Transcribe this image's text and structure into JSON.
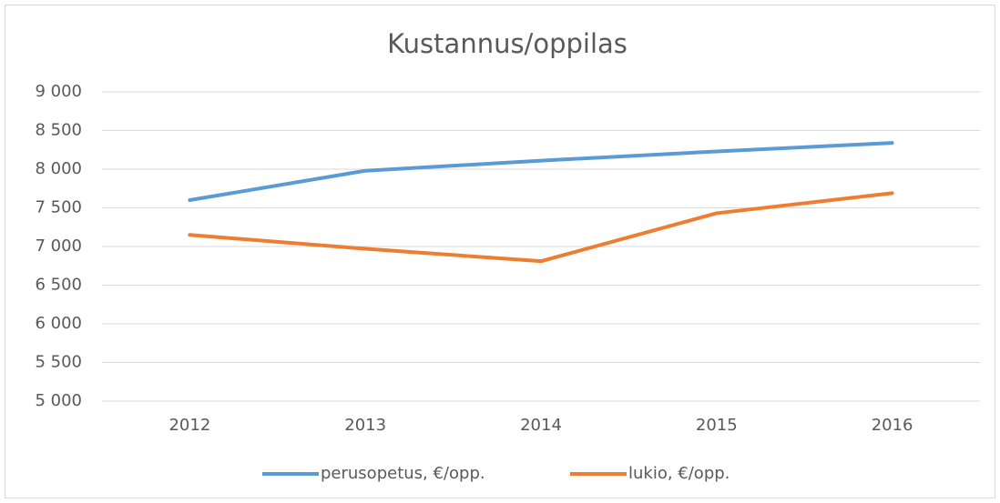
{
  "chart_data": {
    "type": "line",
    "title": "Kustannus/oppilas",
    "categories": [
      "2012",
      "2013",
      "2014",
      "2015",
      "2016"
    ],
    "series": [
      {
        "name": "perusopetus, €/opp.",
        "color": "#5b9bd5",
        "values": [
          7600,
          7980,
          8110,
          8230,
          8340
        ]
      },
      {
        "name": "lukio, €/opp.",
        "color": "#ed7d31",
        "values": [
          7150,
          6970,
          6810,
          7430,
          7690
        ]
      }
    ],
    "ylim": [
      5000,
      9000
    ],
    "yticks": [
      {
        "value": 5000,
        "label": "5 000"
      },
      {
        "value": 5500,
        "label": "5 500"
      },
      {
        "value": 6000,
        "label": "6 000"
      },
      {
        "value": 6500,
        "label": "6 500"
      },
      {
        "value": 7000,
        "label": "7 000"
      },
      {
        "value": 7500,
        "label": "7 500"
      },
      {
        "value": 8000,
        "label": "8 000"
      },
      {
        "value": 8500,
        "label": "8 500"
      },
      {
        "value": 9000,
        "label": "9 000"
      }
    ],
    "grid": true,
    "legend": "bottom"
  }
}
